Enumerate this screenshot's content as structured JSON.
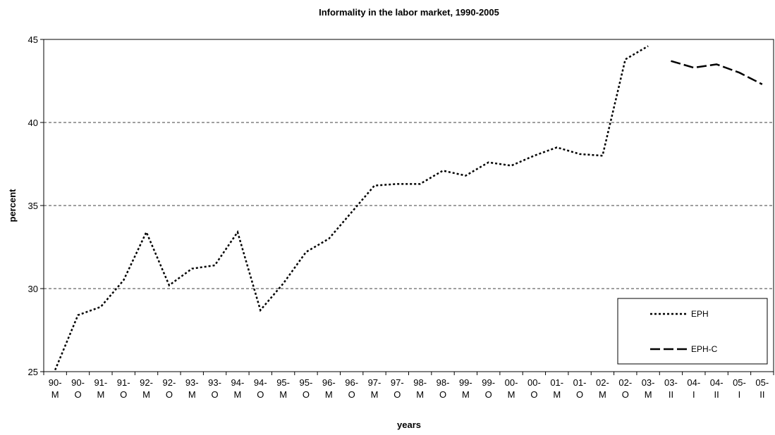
{
  "chart_data": {
    "type": "line",
    "title": "Informality in the labor market, 1990-2005",
    "xlabel": "years",
    "ylabel": "percent",
    "categories": [
      "90-M",
      "90-O",
      "91-M",
      "91-O",
      "92-M",
      "92-O",
      "93-M",
      "93-O",
      "94-M",
      "94-O",
      "95-M",
      "95-O",
      "96-M",
      "96-O",
      "97-M",
      "97-O",
      "98-M",
      "98-O",
      "99-M",
      "99-O",
      "00-M",
      "00-O",
      "01-M",
      "01-O",
      "02-M",
      "02-O",
      "03-M",
      "03-II",
      "04-I",
      "04-II",
      "05-I",
      "05-II"
    ],
    "series": [
      {
        "name": "EPH",
        "color": "#000000",
        "dash": "dotted",
        "values": [
          25.1,
          28.4,
          28.9,
          30.5,
          33.4,
          30.2,
          31.2,
          31.4,
          33.4,
          28.7,
          30.3,
          32.2,
          33.0,
          34.6,
          36.2,
          36.3,
          36.3,
          37.1,
          36.8,
          37.6,
          37.4,
          38.0,
          38.5,
          38.1,
          38.0,
          43.8,
          44.6,
          null,
          null,
          null,
          null,
          null
        ]
      },
      {
        "name": "EPH-C",
        "color": "#000000",
        "dash": "dashed",
        "values": [
          null,
          null,
          null,
          null,
          null,
          null,
          null,
          null,
          null,
          null,
          null,
          null,
          null,
          null,
          null,
          null,
          null,
          null,
          null,
          null,
          null,
          null,
          null,
          null,
          null,
          null,
          null,
          43.7,
          43.3,
          43.5,
          43.0,
          42.3
        ]
      }
    ],
    "ylim": [
      25,
      45
    ],
    "yticks": [
      25,
      30,
      35,
      40,
      45
    ],
    "grid": true,
    "legend": "lower right"
  }
}
